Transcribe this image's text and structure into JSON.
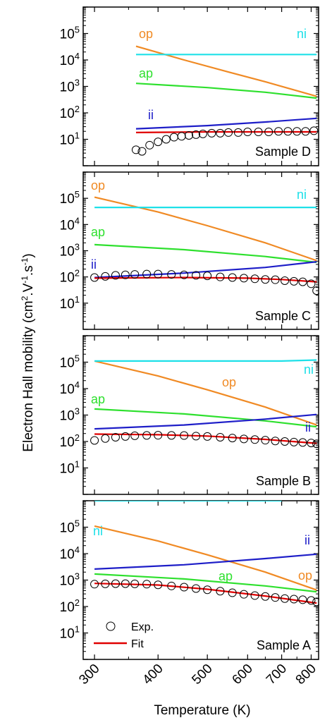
{
  "figure": {
    "ylabel_main": "Electron Hall mobility (cm",
    "ylabel_sup1": "2",
    "ylabel_mid1": ".V",
    "ylabel_sup2": "-1",
    "ylabel_mid2": ".s",
    "ylabel_sup3": "-1",
    "ylabel_end": ")",
    "xlabel": "Temperature (K)",
    "legend": [
      {
        "label": "Exp.",
        "marker": "circle",
        "color": "#000000"
      },
      {
        "label": "Fit",
        "marker": "line",
        "color": "#e00000"
      }
    ]
  },
  "chart_data": [
    {
      "type": "line",
      "panel_label": "Sample D",
      "xscale": "log",
      "yscale": "log",
      "xlim": [
        285,
        830
      ],
      "ylim": [
        1,
        1000000
      ],
      "x_ticks": [
        300,
        400,
        500,
        600,
        700,
        800
      ],
      "y_ticks": [
        10,
        100,
        1000,
        10000,
        100000
      ],
      "series": [
        {
          "name": "op",
          "color": "#f08a24",
          "points": [
            [
              362,
              33000
            ],
            [
              450,
              10000
            ],
            [
              550,
              3500
            ],
            [
              650,
              1500
            ],
            [
              820,
              420
            ]
          ]
        },
        {
          "name": "ni",
          "color": "#1ee0e8",
          "points": [
            [
              362,
              16000
            ],
            [
              820,
              16000
            ]
          ]
        },
        {
          "name": "ap",
          "color": "#2ee02e",
          "points": [
            [
              362,
              1300
            ],
            [
              500,
              900
            ],
            [
              650,
              600
            ],
            [
              820,
              360
            ]
          ]
        },
        {
          "name": "ii",
          "color": "#1e1ec8",
          "points": [
            [
              362,
              25
            ],
            [
              500,
              33
            ],
            [
              650,
              45
            ],
            [
              820,
              62
            ]
          ]
        },
        {
          "name": "Fit",
          "color": "#e00000",
          "points": [
            [
              362,
              18
            ],
            [
              500,
              19
            ],
            [
              650,
              19
            ],
            [
              820,
              19
            ]
          ]
        },
        {
          "name": "Exp.",
          "color": "#000000",
          "marker": "circle",
          "points": [
            [
              362,
              4
            ],
            [
              372,
              3.5
            ],
            [
              385,
              6
            ],
            [
              400,
              8
            ],
            [
              415,
              10
            ],
            [
              430,
              12
            ],
            [
              445,
              13
            ],
            [
              460,
              14
            ],
            [
              475,
              15
            ],
            [
              490,
              16
            ],
            [
              510,
              17
            ],
            [
              530,
              17
            ],
            [
              550,
              18
            ],
            [
              575,
              18
            ],
            [
              600,
              19
            ],
            [
              630,
              19
            ],
            [
              660,
              19
            ],
            [
              690,
              20
            ],
            [
              720,
              20
            ],
            [
              750,
              20
            ],
            [
              780,
              20
            ],
            [
              810,
              21
            ]
          ]
        }
      ],
      "annotations": [
        {
          "text": "op",
          "color": "#f08a24"
        },
        {
          "text": "ni",
          "color": "#1ee0e8"
        },
        {
          "text": "ap",
          "color": "#2ee02e"
        },
        {
          "text": "ii",
          "color": "#1e1ec8"
        }
      ]
    },
    {
      "type": "line",
      "panel_label": "Sample C",
      "xscale": "log",
      "yscale": "log",
      "xlim": [
        285,
        830
      ],
      "ylim": [
        1,
        1000000
      ],
      "x_ticks": [
        300,
        400,
        500,
        600,
        700,
        800
      ],
      "y_ticks": [
        10,
        100,
        1000,
        10000,
        100000
      ],
      "series": [
        {
          "name": "op",
          "color": "#f08a24",
          "points": [
            [
              300,
              110000
            ],
            [
              400,
              30000
            ],
            [
              500,
              9000
            ],
            [
              650,
              2000
            ],
            [
              820,
              420
            ]
          ]
        },
        {
          "name": "ni",
          "color": "#1ee0e8",
          "points": [
            [
              300,
              45000
            ],
            [
              820,
              45000
            ]
          ]
        },
        {
          "name": "ap",
          "color": "#2ee02e",
          "points": [
            [
              300,
              1700
            ],
            [
              450,
              1100
            ],
            [
              650,
              600
            ],
            [
              820,
              360
            ]
          ]
        },
        {
          "name": "ii",
          "color": "#1e1ec8",
          "points": [
            [
              300,
              95
            ],
            [
              450,
              140
            ],
            [
              650,
              230
            ],
            [
              820,
              380
            ]
          ]
        },
        {
          "name": "Fit",
          "color": "#e00000",
          "points": [
            [
              300,
              90
            ],
            [
              450,
              95
            ],
            [
              600,
              90
            ],
            [
              700,
              80
            ],
            [
              820,
              65
            ]
          ]
        },
        {
          "name": "Exp.",
          "color": "#000000",
          "marker": "circle",
          "points": [
            [
              300,
              95
            ],
            [
              315,
              105
            ],
            [
              330,
              115
            ],
            [
              345,
              120
            ],
            [
              360,
              125
            ],
            [
              380,
              128
            ],
            [
              400,
              128
            ],
            [
              425,
              125
            ],
            [
              450,
              120
            ],
            [
              475,
              115
            ],
            [
              500,
              110
            ],
            [
              530,
              100
            ],
            [
              560,
              95
            ],
            [
              590,
              90
            ],
            [
              620,
              85
            ],
            [
              650,
              80
            ],
            [
              680,
              78
            ],
            [
              710,
              72
            ],
            [
              740,
              68
            ],
            [
              770,
              65
            ],
            [
              800,
              55
            ],
            [
              820,
              30
            ]
          ]
        }
      ],
      "annotations": [
        {
          "text": "op",
          "color": "#f08a24"
        },
        {
          "text": "ni",
          "color": "#1ee0e8"
        },
        {
          "text": "ap",
          "color": "#2ee02e"
        },
        {
          "text": "ii",
          "color": "#1e1ec8"
        }
      ]
    },
    {
      "type": "line",
      "panel_label": "Sample B",
      "xscale": "log",
      "yscale": "log",
      "xlim": [
        285,
        830
      ],
      "ylim": [
        1,
        1000000
      ],
      "x_ticks": [
        300,
        400,
        500,
        600,
        700,
        800
      ],
      "y_ticks": [
        10,
        100,
        1000,
        10000,
        100000
      ],
      "series": [
        {
          "name": "op",
          "color": "#f08a24",
          "points": [
            [
              300,
              110000
            ],
            [
              400,
              30000
            ],
            [
              500,
              9000
            ],
            [
              650,
              2000
            ],
            [
              820,
              420
            ]
          ]
        },
        {
          "name": "ni",
          "color": "#1ee0e8",
          "points": [
            [
              300,
              110000
            ],
            [
              700,
              110000
            ],
            [
              820,
              120000
            ]
          ]
        },
        {
          "name": "ap",
          "color": "#2ee02e",
          "points": [
            [
              300,
              1700
            ],
            [
              450,
              1100
            ],
            [
              650,
              600
            ],
            [
              820,
              360
            ]
          ]
        },
        {
          "name": "ii",
          "color": "#1e1ec8",
          "points": [
            [
              300,
              300
            ],
            [
              450,
              420
            ],
            [
              650,
              700
            ],
            [
              820,
              1050
            ]
          ]
        },
        {
          "name": "Fit",
          "color": "#e00000",
          "points": [
            [
              300,
              190
            ],
            [
              400,
              180
            ],
            [
              500,
              160
            ],
            [
              650,
              120
            ],
            [
              820,
              85
            ]
          ]
        },
        {
          "name": "Exp.",
          "color": "#000000",
          "marker": "circle",
          "points": [
            [
              300,
              110
            ],
            [
              315,
              130
            ],
            [
              330,
              145
            ],
            [
              345,
              155
            ],
            [
              360,
              165
            ],
            [
              380,
              170
            ],
            [
              400,
              172
            ],
            [
              425,
              170
            ],
            [
              450,
              168
            ],
            [
              475,
              160
            ],
            [
              500,
              155
            ],
            [
              530,
              145
            ],
            [
              560,
              135
            ],
            [
              590,
              125
            ],
            [
              620,
              118
            ],
            [
              650,
              112
            ],
            [
              680,
              105
            ],
            [
              710,
              100
            ],
            [
              740,
              95
            ],
            [
              770,
              92
            ],
            [
              800,
              88
            ],
            [
              820,
              82
            ]
          ]
        }
      ],
      "annotations": [
        {
          "text": "op",
          "color": "#f08a24"
        },
        {
          "text": "ni",
          "color": "#1ee0e8"
        },
        {
          "text": "ap",
          "color": "#2ee02e"
        },
        {
          "text": "ii",
          "color": "#1e1ec8"
        }
      ]
    },
    {
      "type": "line",
      "panel_label": "Sample A",
      "xscale": "log",
      "yscale": "log",
      "xlim": [
        285,
        830
      ],
      "ylim": [
        1,
        1000000
      ],
      "x_ticks": [
        300,
        400,
        500,
        600,
        700,
        800
      ],
      "y_ticks": [
        10,
        100,
        1000,
        10000,
        100000
      ],
      "series": [
        {
          "name": "op",
          "color": "#f08a24",
          "points": [
            [
              300,
              110000
            ],
            [
              400,
              30000
            ],
            [
              500,
              9000
            ],
            [
              650,
              2000
            ],
            [
              820,
              420
            ]
          ]
        },
        {
          "name": "ni",
          "color": "#1ee0e8",
          "points": [
            [
              300,
              1000000
            ],
            [
              700,
              1000000
            ]
          ]
        },
        {
          "name": "ap",
          "color": "#2ee02e",
          "points": [
            [
              300,
              1700
            ],
            [
              450,
              1100
            ],
            [
              650,
              600
            ],
            [
              820,
              360
            ]
          ]
        },
        {
          "name": "ii",
          "color": "#1e1ec8",
          "points": [
            [
              300,
              2600
            ],
            [
              450,
              3800
            ],
            [
              650,
              6500
            ],
            [
              820,
              9500
            ]
          ]
        },
        {
          "name": "Fit",
          "color": "#e00000",
          "points": [
            [
              300,
              750
            ],
            [
              400,
              650
            ],
            [
              500,
              450
            ],
            [
              650,
              250
            ],
            [
              820,
              135
            ]
          ]
        },
        {
          "name": "Exp.",
          "color": "#000000",
          "marker": "circle",
          "points": [
            [
              300,
              700
            ],
            [
              315,
              720
            ],
            [
              330,
              730
            ],
            [
              345,
              730
            ],
            [
              360,
              720
            ],
            [
              380,
              700
            ],
            [
              400,
              660
            ],
            [
              425,
              600
            ],
            [
              450,
              540
            ],
            [
              475,
              480
            ],
            [
              500,
              430
            ],
            [
              530,
              380
            ],
            [
              560,
              330
            ],
            [
              590,
              290
            ],
            [
              620,
              260
            ],
            [
              650,
              240
            ],
            [
              680,
              220
            ],
            [
              710,
              200
            ],
            [
              740,
              190
            ],
            [
              770,
              180
            ],
            [
              800,
              170
            ],
            [
              820,
              150
            ]
          ]
        }
      ],
      "annotations": [
        {
          "text": "ni",
          "color": "#1ee0e8"
        },
        {
          "text": "ii",
          "color": "#1e1ec8"
        },
        {
          "text": "op",
          "color": "#f08a24"
        },
        {
          "text": "ap",
          "color": "#2ee02e"
        }
      ]
    }
  ]
}
